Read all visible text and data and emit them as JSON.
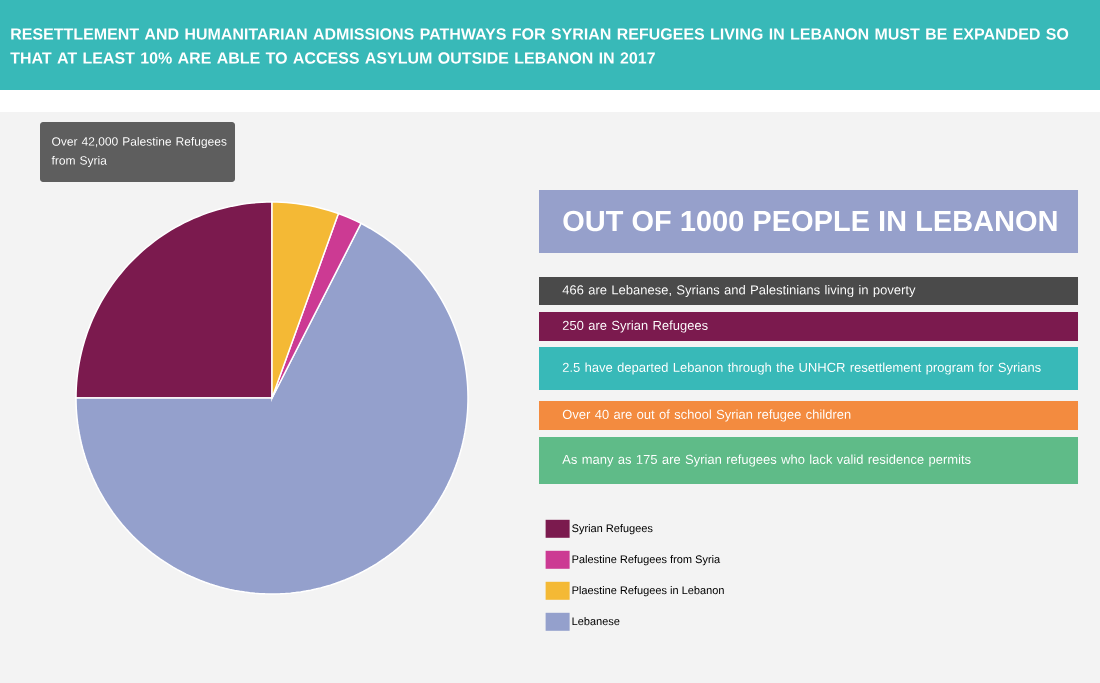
{
  "chart_data": {
    "type": "pie",
    "title": "RESETTLEMENT AND HUMANITARIAN ADMISSIONS PATHWAYS FOR SYRIAN REFUGEES LIVING IN LEBANON MUST BE EXPANDED SO THAT AT LEAST 10% ARE ABLE TO ACCESS ASYLUM OUTSIDE LEBANON IN 2017",
    "categories": [
      "Syrian Refugees",
      "Palestine Refugees from Syria",
      "Plaestine Refugees in Lebanon",
      "Lebanese"
    ],
    "values": [
      25,
      2,
      5.5,
      67.5
    ],
    "colors": [
      "#7b1a4e",
      "#cc3a93",
      "#f4b935",
      "#94a0cc"
    ],
    "legend": "bottom right",
    "annotations": [
      "Over 42,000 Palestine Refugees from Syria",
      "OUT OF 1000 PEOPLE IN LEBANON",
      "466 are Lebanese, Syrians and Palestinians living in poverty",
      "250 are Syrian Refugees",
      "2.5 have departed Lebanon through the UNHCR resettlement program for Syrians",
      "Over 40 are out of school Syrian refugee children",
      "As many as 175 are Syrian refugees who lack valid residence permits"
    ]
  }
}
